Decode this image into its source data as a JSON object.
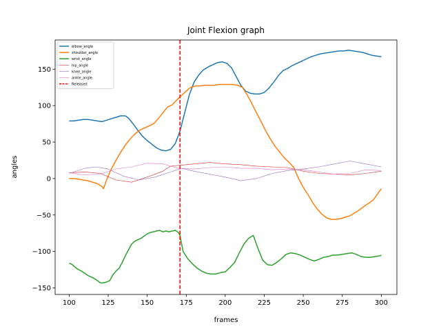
{
  "chart_data": {
    "type": "line",
    "title": "Joint Flexion graph",
    "xlabel": "frames",
    "ylabel": "angles",
    "xlim": [
      91,
      310
    ],
    "ylim": [
      -159,
      190
    ],
    "xticks": [
      100,
      125,
      150,
      175,
      200,
      225,
      250,
      275,
      300
    ],
    "yticks": [
      -150,
      -100,
      -50,
      0,
      50,
      100,
      150
    ],
    "grid": false,
    "legend_position": "upper-left",
    "series": [
      {
        "name": "elbow_angle",
        "color": "#1f77b4",
        "width": "thick",
        "x": [
          100,
          103,
          106,
          109,
          112,
          115,
          118,
          121,
          124,
          127,
          130,
          133,
          136,
          138,
          141,
          144,
          147,
          150,
          153,
          156,
          159,
          162,
          165,
          168,
          171,
          174,
          177,
          180,
          183,
          186,
          189,
          192,
          195,
          198,
          201,
          204,
          207,
          210,
          213,
          216,
          219,
          222,
          225,
          228,
          231,
          234,
          237,
          240,
          243,
          246,
          249,
          252,
          255,
          258,
          261,
          264,
          267,
          270,
          273,
          276,
          279,
          282,
          285,
          288,
          291,
          294,
          297,
          300
        ],
        "y": [
          79,
          79,
          80,
          81,
          81,
          80,
          79,
          78,
          80,
          82,
          84,
          86,
          86,
          83,
          75,
          66,
          58,
          52,
          47,
          42,
          39,
          38,
          40,
          48,
          65,
          90,
          115,
          132,
          142,
          149,
          153,
          156,
          159,
          160,
          158,
          152,
          140,
          128,
          120,
          117,
          116,
          116,
          118,
          124,
          132,
          141,
          148,
          151,
          155,
          158,
          161,
          164,
          167,
          169,
          171,
          172,
          173,
          174,
          175,
          175,
          176,
          175,
          174,
          173,
          171,
          169,
          168,
          167
        ]
      },
      {
        "name": "shoulder_angle",
        "color": "#ff7f0e",
        "width": "thick",
        "x": [
          100,
          103,
          106,
          109,
          112,
          115,
          118,
          121,
          122,
          124,
          127,
          130,
          133,
          136,
          139,
          142,
          145,
          148,
          151,
          154,
          157,
          160,
          163,
          166,
          169,
          172,
          175,
          178,
          181,
          184,
          187,
          190,
          193,
          196,
          199,
          202,
          205,
          208,
          211,
          214,
          217,
          220,
          223,
          226,
          229,
          232,
          235,
          238,
          241,
          244,
          247,
          250,
          253,
          256,
          259,
          262,
          265,
          268,
          271,
          274,
          277,
          280,
          283,
          286,
          289,
          292,
          295,
          298,
          300
        ],
        "y": [
          0,
          0,
          -1,
          -2,
          -3,
          -5,
          -7,
          -11,
          -14,
          -2,
          13,
          25,
          36,
          46,
          54,
          61,
          66,
          69,
          72,
          75,
          82,
          90,
          98,
          101,
          108,
          114,
          120,
          125,
          127,
          127,
          128,
          128,
          128,
          129,
          129,
          129,
          129,
          128,
          125,
          115,
          103,
          90,
          78,
          65,
          54,
          44,
          36,
          28,
          22,
          15,
          0,
          -12,
          -22,
          -33,
          -42,
          -49,
          -54,
          -56,
          -56,
          -55,
          -53,
          -51,
          -47,
          -43,
          -38,
          -34,
          -29,
          -20,
          -14
        ]
      },
      {
        "name": "wrist_angle",
        "color": "#2ca02c",
        "width": "thick",
        "x": [
          100,
          102,
          104,
          106,
          108,
          110,
          112,
          114,
          116,
          118,
          120,
          122,
          124,
          126,
          128,
          130,
          132,
          134,
          136,
          138,
          140,
          142,
          144,
          146,
          148,
          150,
          152,
          154,
          156,
          158,
          160,
          162,
          164,
          166,
          168,
          170,
          171,
          173,
          176,
          179,
          182,
          185,
          188,
          191,
          194,
          197,
          200,
          203,
          206,
          209,
          212,
          215,
          218,
          221,
          224,
          227,
          230,
          233,
          236,
          239,
          242,
          245,
          248,
          251,
          254,
          257,
          260,
          263,
          266,
          269,
          272,
          275,
          278,
          281,
          284,
          287,
          290,
          293,
          296,
          299,
          300
        ],
        "y": [
          -116,
          -118,
          -122,
          -125,
          -127,
          -130,
          -133,
          -135,
          -137,
          -140,
          -143,
          -143,
          -142,
          -140,
          -132,
          -127,
          -123,
          -115,
          -106,
          -98,
          -90,
          -86,
          -84,
          -82,
          -79,
          -76,
          -74,
          -73,
          -72,
          -71,
          -73,
          -72,
          -73,
          -72,
          -71,
          -74,
          -78,
          -100,
          -110,
          -117,
          -123,
          -127,
          -130,
          -131,
          -131,
          -129,
          -128,
          -122,
          -115,
          -102,
          -90,
          -82,
          -78,
          -96,
          -112,
          -118,
          -119,
          -115,
          -110,
          -104,
          -102,
          -103,
          -105,
          -108,
          -111,
          -113,
          -111,
          -108,
          -107,
          -105,
          -105,
          -104,
          -103,
          -102,
          -104,
          -107,
          -108,
          -108,
          -107,
          -106,
          -105
        ]
      },
      {
        "name": "hip_angle",
        "color": "#d62728",
        "width": "thin",
        "x": [
          100,
          110,
          120,
          130,
          140,
          150,
          160,
          165,
          170,
          180,
          190,
          200,
          210,
          220,
          230,
          240,
          250,
          260,
          270,
          280,
          290,
          300
        ],
        "y": [
          8,
          9,
          7,
          -2,
          -5,
          2,
          10,
          17,
          18,
          20,
          22,
          20,
          19,
          17,
          16,
          15,
          10,
          7,
          6,
          5,
          7,
          10
        ]
      },
      {
        "name": "knee_angle",
        "color": "#9467bd",
        "width": "thin",
        "x": [
          100,
          110,
          117,
          125,
          135,
          145,
          155,
          165,
          172,
          180,
          190,
          200,
          210,
          220,
          230,
          240,
          250,
          260,
          270,
          280,
          290,
          300
        ],
        "y": [
          7,
          14,
          16,
          13,
          3,
          -2,
          2,
          9,
          14,
          10,
          6,
          2,
          -3,
          0,
          7,
          11,
          13,
          16,
          20,
          24,
          20,
          16
        ]
      },
      {
        "name": "ankle_angle",
        "color": "#e377c2",
        "width": "thin",
        "x": [
          100,
          110,
          120,
          130,
          140,
          150,
          160,
          170,
          180,
          190,
          200,
          210,
          220,
          230,
          240,
          250,
          260,
          270,
          280,
          290,
          300
        ],
        "y": [
          8,
          5,
          6,
          13,
          16,
          21,
          20,
          14,
          13,
          15,
          16,
          14,
          14,
          12,
          13,
          12,
          9,
          6,
          7,
          12,
          11
        ]
      }
    ],
    "vertical_lines": [
      {
        "name": "Released",
        "x": 171,
        "color": "#ff0000",
        "style": "dashed"
      }
    ]
  }
}
